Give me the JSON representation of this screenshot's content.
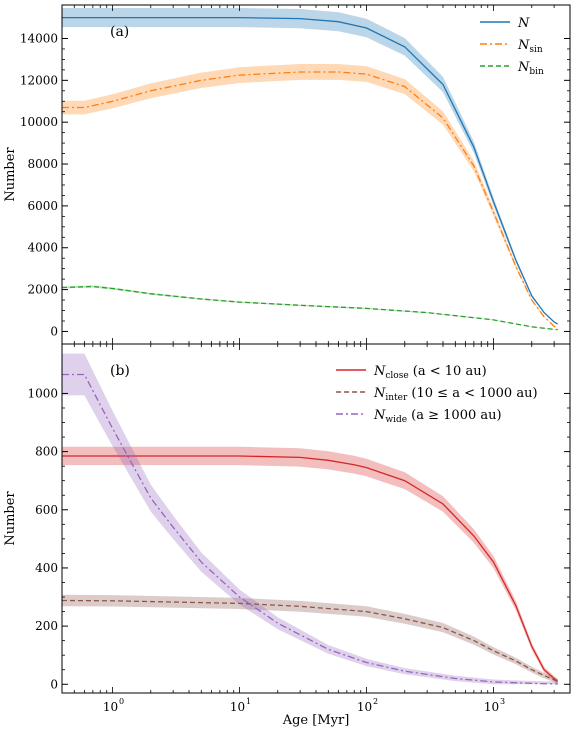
{
  "chart_data": [
    {
      "type": "line",
      "panel_label": "(a)",
      "ylabel": "Number",
      "xscale": "log",
      "xlim": [
        0.4,
        4000
      ],
      "ylim": [
        -600,
        15600
      ],
      "yticks": [
        0,
        2000,
        4000,
        6000,
        8000,
        10000,
        12000,
        14000
      ],
      "legend": {
        "position": "top-right"
      },
      "series": [
        {
          "name": "N",
          "legend_base": "N",
          "legend_sub": "",
          "legend_suffix": "",
          "color": "#1f77b4",
          "dash": "solid",
          "band": 0.03,
          "x": [
            0.4,
            1,
            10,
            30,
            60,
            100,
            200,
            400,
            700,
            1000,
            1500,
            2000,
            2500,
            3000,
            3200
          ],
          "y": [
            15000,
            15000,
            15000,
            14950,
            14800,
            14500,
            13600,
            11800,
            8800,
            6200,
            3400,
            1700,
            900,
            450,
            350
          ]
        },
        {
          "name": "N_sin",
          "legend_base": "N",
          "legend_sub": "sin",
          "legend_suffix": "",
          "color": "#ff7f0e",
          "dash": "dashdot",
          "band": 0.03,
          "x": [
            0.4,
            0.6,
            1,
            2,
            5,
            10,
            30,
            60,
            100,
            200,
            400,
            700,
            1000,
            1500,
            2000,
            2500,
            3000,
            3200
          ],
          "y": [
            10700,
            10700,
            11000,
            11500,
            12000,
            12250,
            12400,
            12400,
            12300,
            11700,
            10200,
            7900,
            5700,
            3100,
            1500,
            700,
            250,
            120
          ]
        },
        {
          "name": "N_bin",
          "legend_base": "N",
          "legend_sub": "bin",
          "legend_suffix": "",
          "color": "#2ca02c",
          "dash": "dashed",
          "band": 0.02,
          "x": [
            0.4,
            0.7,
            1,
            2,
            5,
            10,
            30,
            100,
            300,
            1000,
            2000,
            3000,
            3200
          ],
          "y": [
            2100,
            2150,
            2050,
            1800,
            1550,
            1400,
            1250,
            1100,
            900,
            550,
            220,
            100,
            90
          ]
        }
      ]
    },
    {
      "type": "line",
      "panel_label": "(b)",
      "xlabel": "Age [Myr]",
      "ylabel": "Number",
      "xscale": "log",
      "xlim": [
        0.4,
        4000
      ],
      "ylim": [
        -30,
        1170
      ],
      "yticks": [
        0,
        200,
        400,
        600,
        800,
        1000
      ],
      "xticks": [
        {
          "value": 1,
          "mantissa": "10",
          "exponent": "0"
        },
        {
          "value": 10,
          "mantissa": "10",
          "exponent": "1"
        },
        {
          "value": 100,
          "mantissa": "10",
          "exponent": "2"
        },
        {
          "value": 1000,
          "mantissa": "10",
          "exponent": "3"
        }
      ],
      "legend": {
        "position": "top-right"
      },
      "series": [
        {
          "name": "N_close (a < 10 au)",
          "legend_base": "N",
          "legend_sub": "close",
          "legend_suffix": " (a < 10 au)",
          "color": "#d62728",
          "dash": "solid",
          "band": 0.03,
          "x": [
            0.4,
            1,
            10,
            30,
            50,
            80,
            100,
            200,
            400,
            700,
            1000,
            1500,
            2000,
            2500,
            3000,
            3200
          ],
          "y": [
            785,
            785,
            785,
            780,
            770,
            755,
            745,
            700,
            620,
            510,
            420,
            270,
            130,
            50,
            20,
            10
          ]
        },
        {
          "name": "N_inter (10 ≤ a < 1000 au)",
          "legend_base": "N",
          "legend_sub": "inter",
          "legend_suffix": " (10 ≤ a < 1000 au)",
          "color": "#8c564b",
          "dash": "dashed",
          "band": 0.04,
          "x": [
            0.4,
            1,
            10,
            30,
            100,
            200,
            400,
            700,
            1000,
            1500,
            2000,
            2500,
            3000,
            3200
          ],
          "y": [
            288,
            287,
            278,
            268,
            250,
            225,
            195,
            150,
            115,
            80,
            50,
            30,
            15,
            10
          ]
        },
        {
          "name": "N_wide (a ≥ 1000 au)",
          "legend_base": "N",
          "legend_sub": "wide",
          "legend_suffix": " (a ≥ 1000 au)",
          "color": "#9467bd",
          "dash": "dashdot",
          "band": 0.06,
          "x": [
            0.4,
            0.6,
            1,
            2,
            3,
            5,
            10,
            20,
            50,
            100,
            200,
            500,
            1000,
            2000,
            3200
          ],
          "y": [
            1065,
            1065,
            880,
            640,
            540,
            420,
            300,
            210,
            120,
            75,
            45,
            20,
            8,
            3,
            1
          ]
        }
      ]
    }
  ]
}
